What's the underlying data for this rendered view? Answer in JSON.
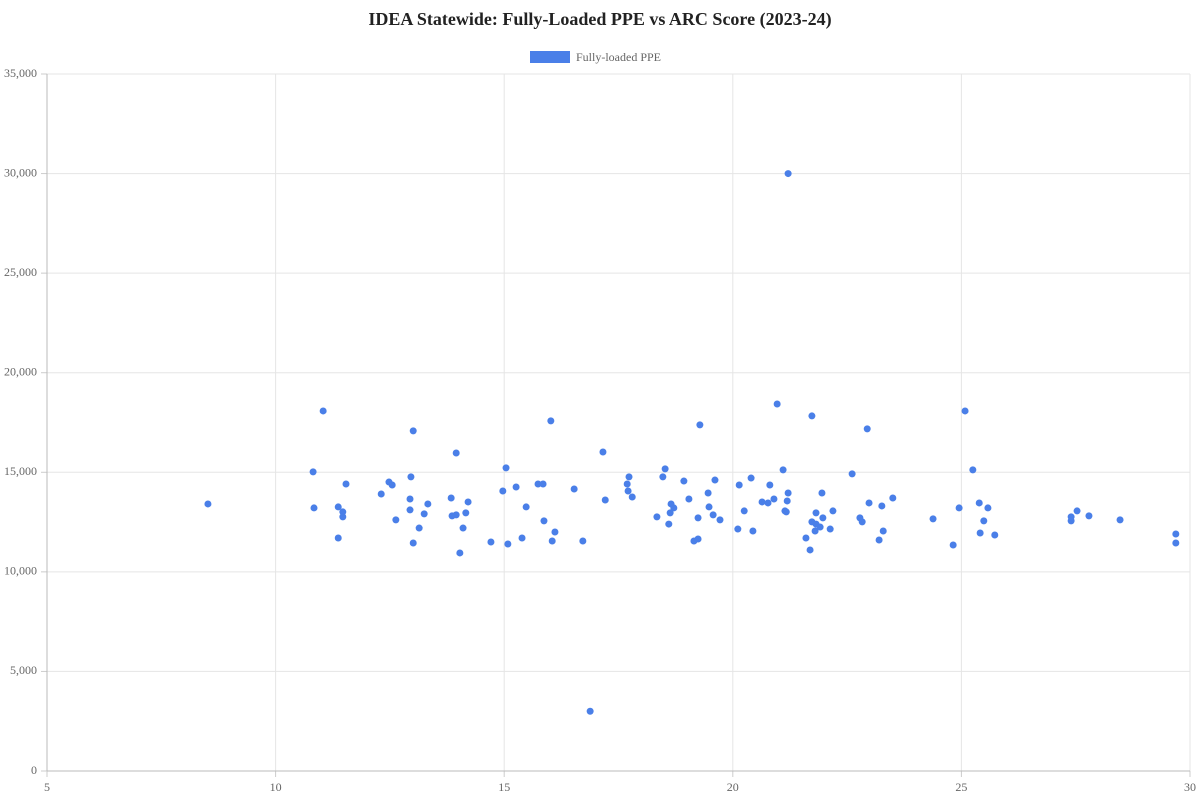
{
  "chart_data": {
    "type": "scatter",
    "title": "IDEA Statewide: Fully-Loaded PPE vs ARC Score (2023-24)",
    "series": [
      {
        "name": "Fully-loaded PPE",
        "color": "#4a7fe8",
        "x": [
          8.52,
          10.82,
          10.84,
          11.04,
          11.37,
          11.37,
          11.47,
          11.47,
          11.54,
          12.31,
          12.48,
          12.55,
          12.63,
          12.96,
          12.94,
          12.94,
          13.01,
          13.01,
          13.14,
          13.25,
          13.33,
          13.84,
          13.86,
          13.95,
          13.95,
          14.03,
          14.1,
          14.16,
          14.21,
          14.71,
          14.97,
          15.04,
          15.08,
          15.26,
          15.39,
          15.48,
          15.74,
          15.85,
          15.87,
          16.02,
          16.05,
          16.11,
          16.53,
          16.72,
          16.88,
          17.16,
          17.21,
          17.69,
          17.71,
          17.73,
          17.8,
          18.34,
          18.47,
          18.52,
          18.6,
          18.63,
          18.65,
          18.71,
          18.93,
          19.04,
          19.15,
          19.24,
          19.24,
          19.28,
          19.46,
          19.48,
          19.57,
          19.61,
          19.72,
          20.11,
          20.14,
          20.25,
          20.4,
          20.44,
          20.64,
          20.77,
          20.81,
          20.9,
          20.97,
          21.1,
          21.14,
          21.17,
          21.21,
          21.19,
          21.21,
          21.6,
          21.69,
          21.73,
          21.73,
          21.8,
          21.82,
          21.82,
          21.91,
          21.95,
          21.97,
          22.13,
          22.19,
          22.61,
          22.78,
          22.83,
          22.94,
          22.98,
          23.2,
          23.26,
          23.29,
          23.5,
          24.38,
          24.82,
          24.95,
          25.08,
          25.25,
          25.39,
          25.41,
          25.49,
          25.58,
          25.73,
          27.4,
          27.4,
          27.53,
          27.79,
          28.47,
          29.69,
          29.69
        ],
        "values": [
          13410,
          15020,
          13210,
          18080,
          13260,
          11700,
          13010,
          12760,
          14410,
          13910,
          14510,
          14360,
          12610,
          14770,
          13660,
          13110,
          17080,
          11450,
          12200,
          12910,
          13410,
          13710,
          12810,
          12860,
          15970,
          10950,
          12200,
          12960,
          13510,
          11500,
          14060,
          15220,
          11400,
          14260,
          11700,
          13260,
          14410,
          14410,
          12560,
          17580,
          11550,
          12000,
          14160,
          11550,
          3000,
          16020,
          13610,
          14410,
          14060,
          14770,
          13760,
          12760,
          14770,
          15170,
          12400,
          12960,
          13410,
          13210,
          14560,
          13660,
          11550,
          11650,
          12710,
          17380,
          13960,
          13260,
          12860,
          14610,
          12610,
          12150,
          14360,
          13060,
          14710,
          12050,
          13510,
          13460,
          14360,
          13660,
          18430,
          15120,
          13060,
          13010,
          30000,
          13560,
          13960,
          11700,
          11100,
          12510,
          17830,
          12050,
          12960,
          12400,
          12250,
          13960,
          12710,
          12150,
          13060,
          14920,
          12710,
          12510,
          17180,
          13460,
          11600,
          13310,
          12050,
          13710,
          12660,
          11350,
          13210,
          18080,
          15120,
          13460,
          11950,
          12560,
          13210,
          11850,
          12760,
          12560,
          13060,
          12810,
          12610,
          11900,
          11450
        ]
      }
    ],
    "xlim": [
      5,
      30
    ],
    "xticks": [
      5,
      10,
      15,
      20,
      25,
      30
    ],
    "ylim": [
      0,
      35000
    ],
    "yticks": [
      0,
      {
        "value": 5000,
        "label": "5,000"
      },
      {
        "value": 10000,
        "label": "10,000"
      },
      {
        "value": 15000,
        "label": "15,000"
      },
      {
        "value": 20000,
        "label": "20,000"
      },
      {
        "value": 25000,
        "label": "25,000"
      },
      {
        "value": 30000,
        "label": "30,000"
      },
      {
        "value": 35000,
        "label": "35,000"
      }
    ],
    "grid": true,
    "legend": "top"
  }
}
